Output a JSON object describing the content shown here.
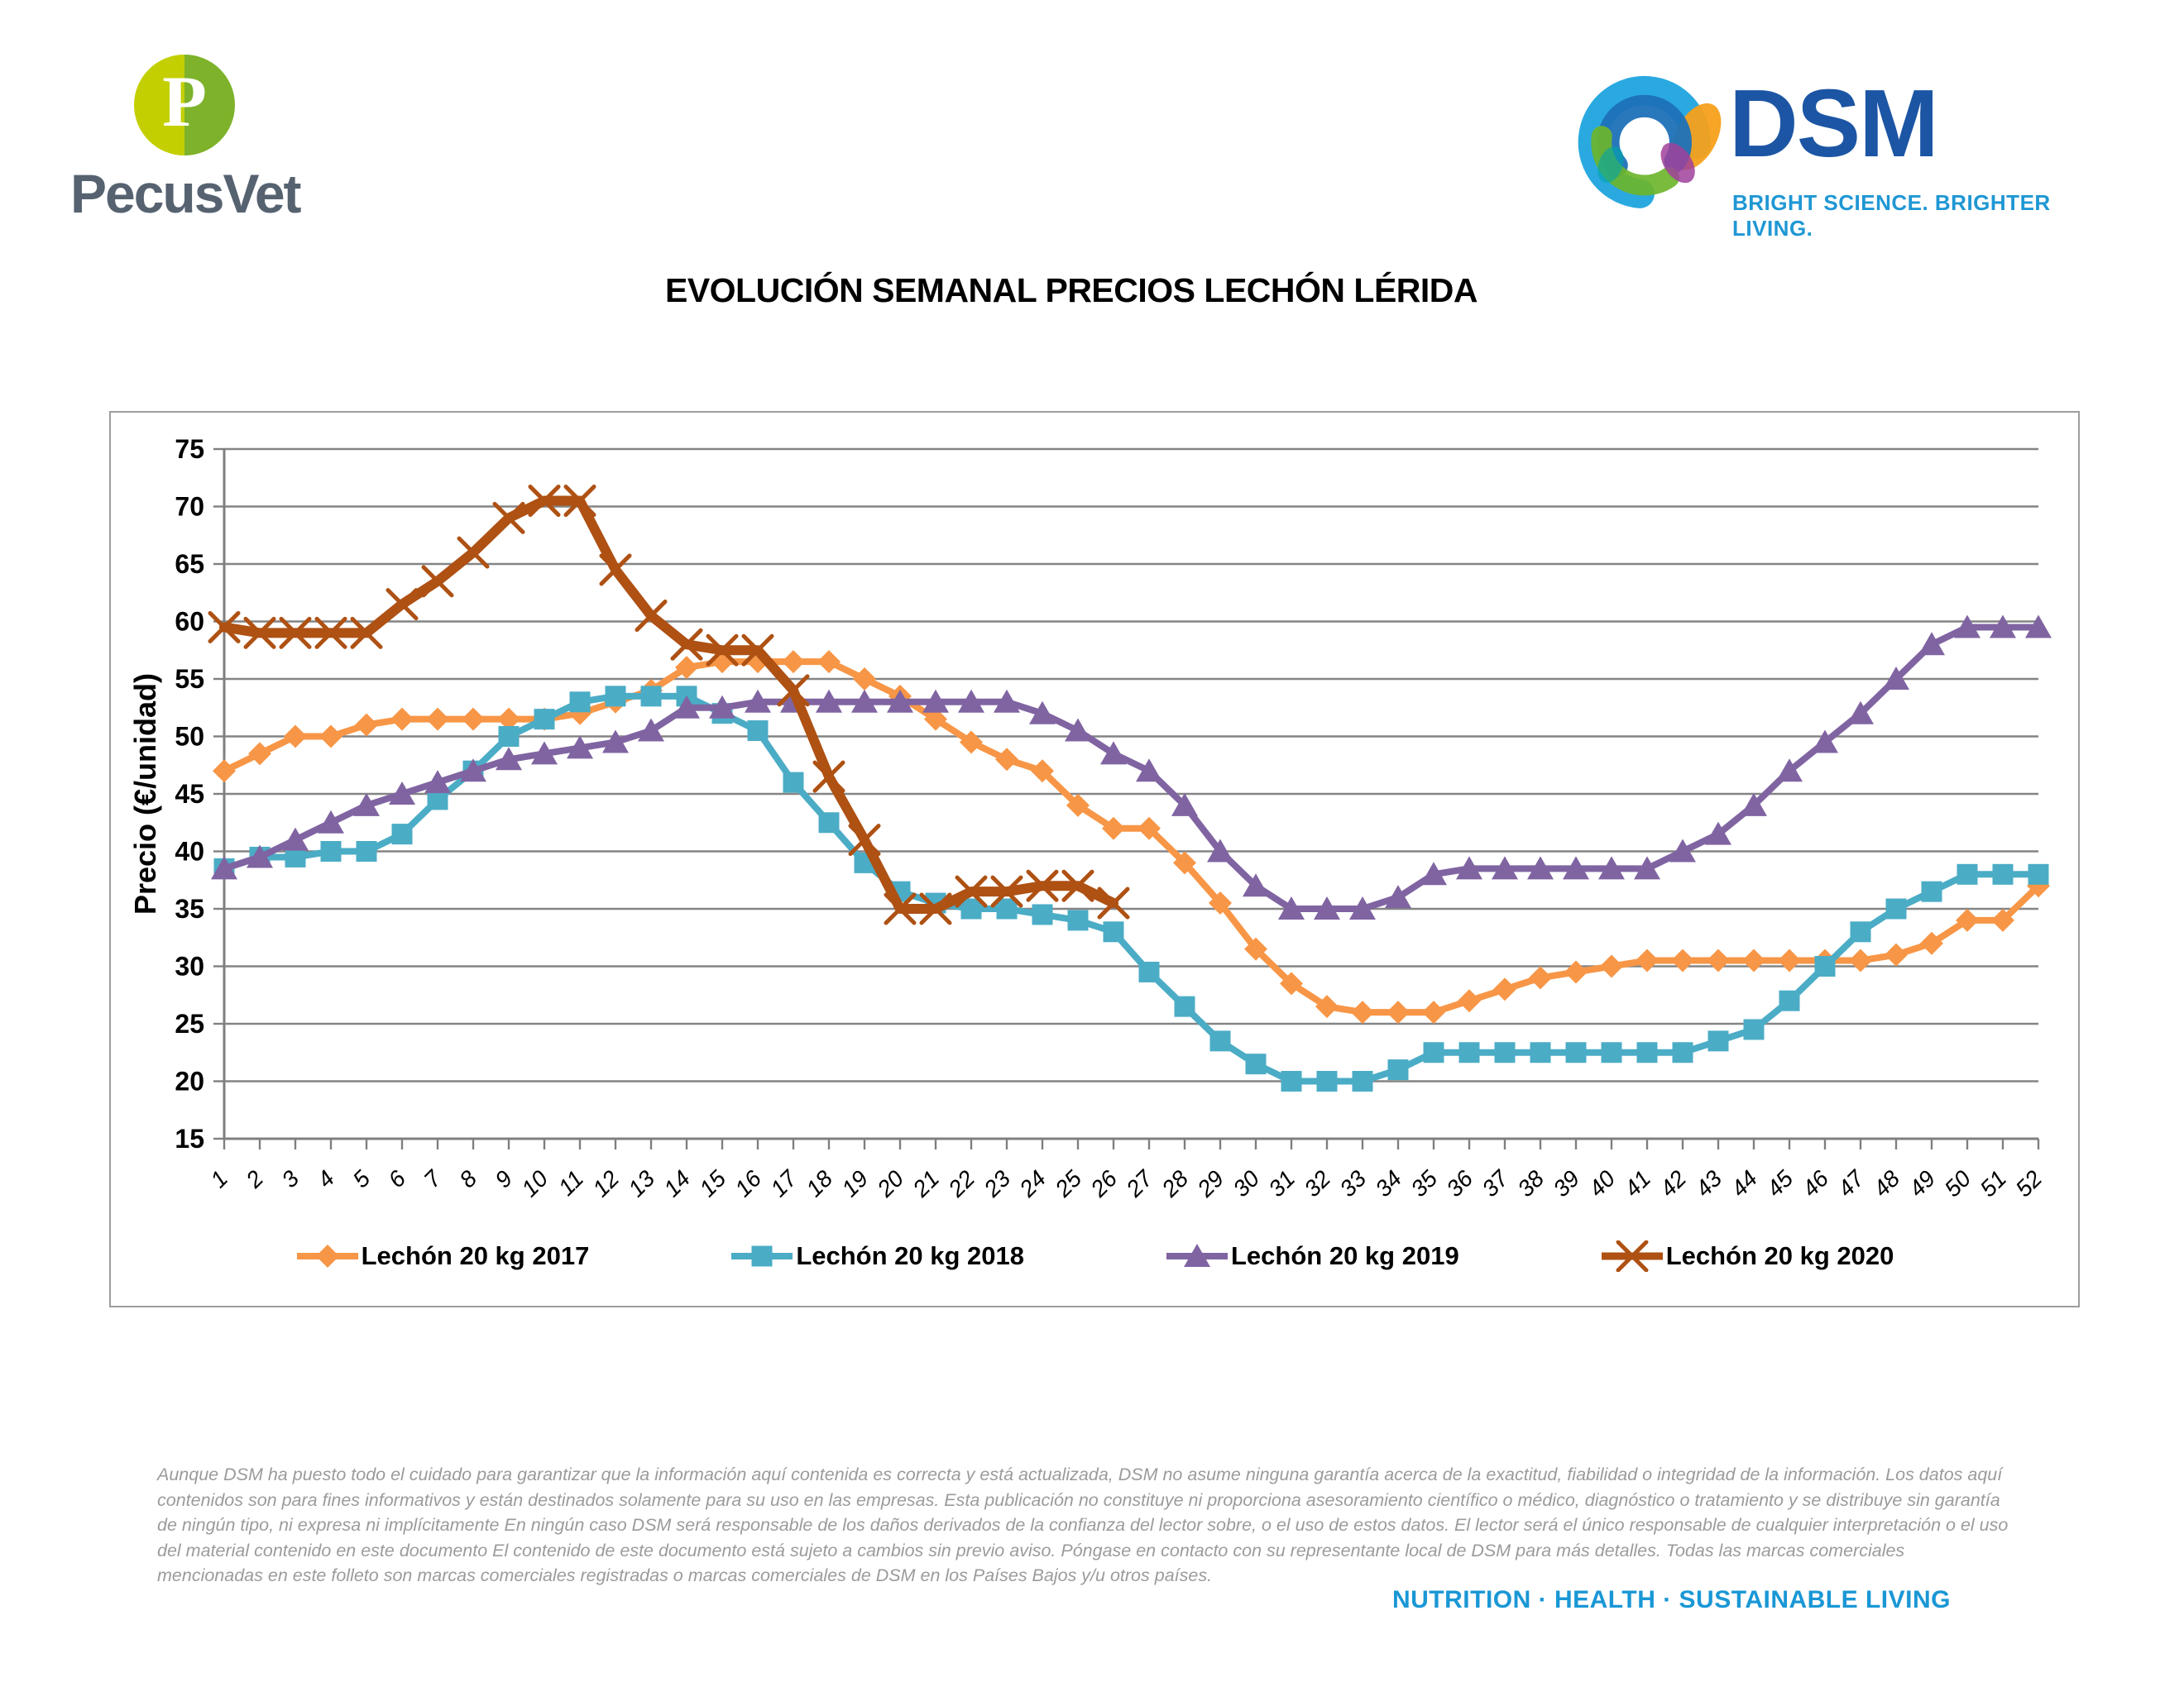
{
  "header": {
    "pecusvet": {
      "monogram": "P",
      "name": "PecusVet"
    },
    "dsm": {
      "name": "DSM",
      "tagline": "BRIGHT SCIENCE. BRIGHTER LIVING."
    }
  },
  "title": {
    "text": "EVOLUCIÓN SEMANAL PRECIOS LECHÓN LÉRIDA"
  },
  "colors": {
    "grid": "#848484",
    "axis": "#7f7f7f",
    "dsm_blue": "#1c55a4",
    "dsm_light_blue": "#1f97d4",
    "tagline_blue": "#1a97d5",
    "pecusvet_yellow_green": "#c3cf00",
    "pecusvet_green": "#7db22a"
  },
  "chart_data": {
    "type": "line",
    "title": "EVOLUCIÓN SEMANAL PRECIOS LECHÓN LÉRIDA",
    "xlabel": "",
    "ylabel": "Precio (€/unidad)",
    "ylim": [
      15,
      75
    ],
    "ytick_step": 5,
    "grid": "horizontal",
    "legend_position": "bottom",
    "x": [
      1,
      2,
      3,
      4,
      5,
      6,
      7,
      8,
      9,
      10,
      11,
      12,
      13,
      14,
      15,
      16,
      17,
      18,
      19,
      20,
      21,
      22,
      23,
      24,
      25,
      26,
      27,
      28,
      29,
      30,
      31,
      32,
      33,
      34,
      35,
      36,
      37,
      38,
      39,
      40,
      41,
      42,
      43,
      44,
      45,
      46,
      47,
      48,
      49,
      50,
      51,
      52
    ],
    "series": [
      {
        "name": "Lechón 20 kg 2017",
        "color": "#F79646",
        "marker": "diamond",
        "line_width": 8,
        "values": [
          47,
          48.5,
          50,
          50,
          51,
          51.5,
          51.5,
          51.5,
          51.5,
          51.5,
          52,
          53,
          54,
          56,
          56.5,
          56.5,
          56.5,
          56.5,
          55,
          53.5,
          51.5,
          49.5,
          48,
          47,
          44,
          42,
          42,
          39,
          35.5,
          31.5,
          28.5,
          26.5,
          26,
          26,
          26,
          27,
          28,
          29,
          29.5,
          30,
          30.5,
          30.5,
          30.5,
          30.5,
          30.5,
          30.5,
          30.5,
          31,
          32,
          34,
          34,
          37
        ]
      },
      {
        "name": "Lechón 20 kg 2018",
        "color": "#4BACC6",
        "marker": "square",
        "line_width": 8,
        "values": [
          38.5,
          39.5,
          39.5,
          40,
          40,
          41.5,
          44.5,
          47,
          50,
          51.5,
          53,
          53.5,
          53.5,
          53.5,
          52,
          50.5,
          46,
          42.5,
          39,
          36.5,
          35.5,
          35,
          35,
          34.5,
          34,
          33,
          29.5,
          26.5,
          23.5,
          21.5,
          20,
          20,
          20,
          21,
          22.5,
          22.5,
          22.5,
          22.5,
          22.5,
          22.5,
          22.5,
          22.5,
          23.5,
          24.5,
          27,
          30,
          33,
          35,
          36.5,
          38,
          38,
          38
        ]
      },
      {
        "name": "Lechón 20 kg 2019",
        "color": "#8064A2",
        "marker": "triangle",
        "line_width": 8,
        "values": [
          38.5,
          39.5,
          41,
          42.5,
          44,
          45,
          46,
          47,
          48,
          48.5,
          49,
          49.5,
          50.5,
          52.5,
          52.5,
          53,
          53,
          53,
          53,
          53,
          53,
          53,
          53,
          52,
          50.5,
          48.5,
          47,
          44,
          40,
          37,
          35,
          35,
          35,
          36,
          38,
          38.5,
          38.5,
          38.5,
          38.5,
          38.5,
          38.5,
          40,
          41.5,
          44,
          47,
          49.5,
          52,
          55,
          58,
          59.5,
          59.5,
          59.5
        ]
      },
      {
        "name": "Lechón 20 kg 2020",
        "color": "#AE5113",
        "marker": "x",
        "line_width": 12,
        "values": [
          59.5,
          59,
          59,
          59,
          59,
          61.5,
          63.5,
          66,
          69,
          70.5,
          70.5,
          64.5,
          60.5,
          58,
          57.5,
          57.5,
          54,
          46.5,
          41,
          35,
          35,
          36.5,
          36.5,
          37,
          37,
          35.5
        ]
      }
    ]
  },
  "footer": {
    "disclaimer": "Aunque DSM ha puesto todo el cuidado para garantizar que la información aquí contenida es correcta y está actualizada, DSM no asume ninguna garantía acerca de la exactitud, fiabilidad o integridad de la información. Los datos aquí contenidos son para fines informativos y están destinados solamente para su uso en las empresas. Esta publicación no constituye ni proporciona asesoramiento científico o médico, diagnóstico o tratamiento y se distribuye sin garantía de ningún tipo, ni expresa ni implícitamente En ningún caso DSM será responsable de los daños derivados de la confianza del lector sobre, o el uso de estos datos. El lector será el único responsable de cualquier interpretación o el uso del material contenido en este documento El contenido de este documento está sujeto a cambios sin previo aviso. Póngase en contacto con su representante local de DSM para más detalles. Todas las marcas comerciales mencionadas en este folleto son marcas comerciales registradas o marcas comerciales de DSM en los Países Bajos y/u otros países.",
    "tagline": "NUTRITION  ·  HEALTH  ·  SUSTAINABLE LIVING"
  }
}
